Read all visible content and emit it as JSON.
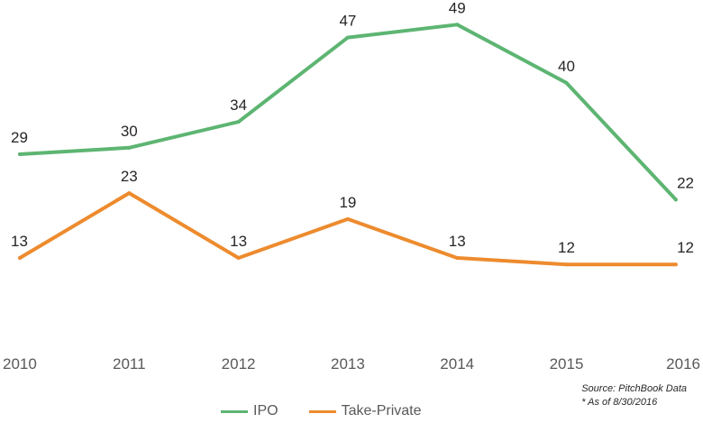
{
  "chart_data": {
    "type": "line",
    "x": [
      "2010",
      "2011",
      "2012",
      "2013",
      "2014",
      "2015",
      "2016"
    ],
    "series": [
      {
        "name": "IPO",
        "color": "#5DB572",
        "values": [
          29,
          30,
          34,
          47,
          49,
          40,
          22
        ]
      },
      {
        "name": "Take-Private",
        "color": "#ED8B2E",
        "values": [
          13,
          23,
          13,
          19,
          13,
          12,
          12
        ]
      }
    ],
    "ylim": [
      0,
      55
    ],
    "grid": false,
    "legend_position": "bottom",
    "data_labels": true
  },
  "source": {
    "line1": "Source: PitchBook Data",
    "line2": "* As of 8/30/2016"
  }
}
